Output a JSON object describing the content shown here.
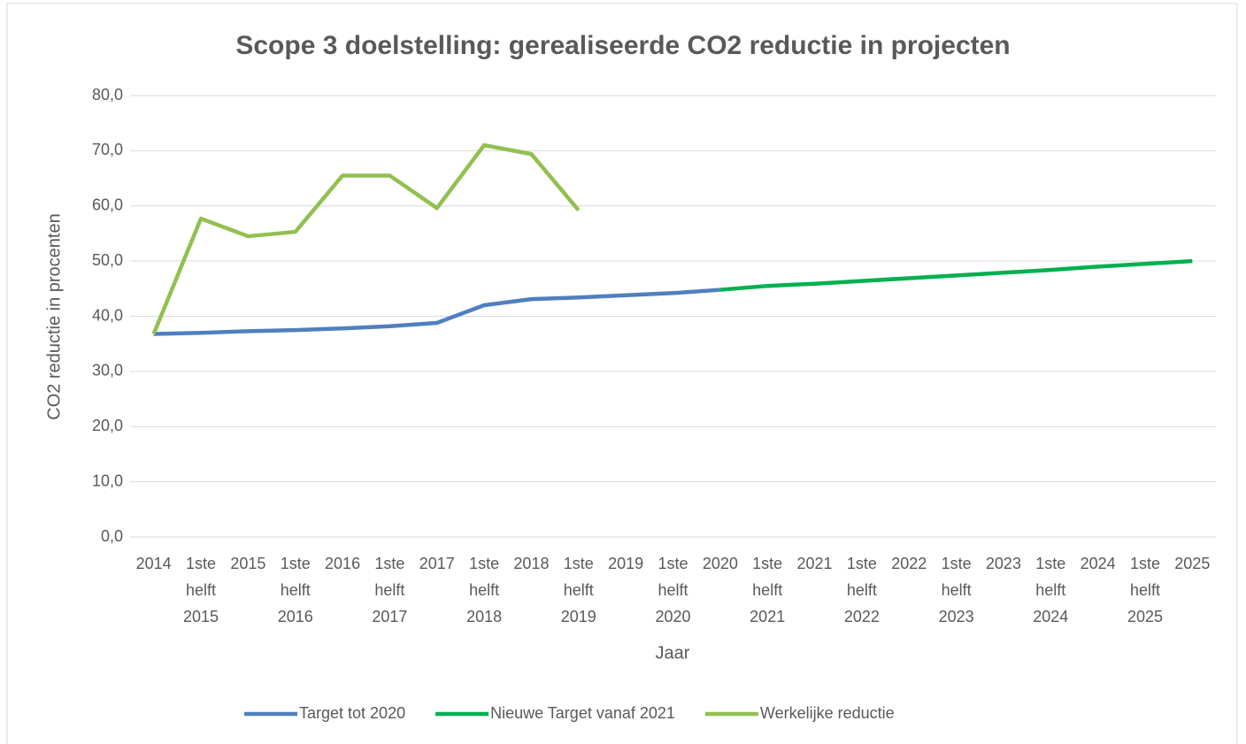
{
  "chart_data": {
    "type": "line",
    "title": "Scope 3 doelstelling: gerealiseerde CO2 reductie in projecten",
    "x_label": "Jaar",
    "y_label": "CO2 reductie in procenten",
    "categories": [
      "2014",
      "1ste helft 2015",
      "2015",
      "1ste helft 2016",
      "2016",
      "1ste helft 2017",
      "2017",
      "1ste helft 2018",
      "2018",
      "1ste helft 2019",
      "2019",
      "1ste helft 2020",
      "2020",
      "1ste helft 2021",
      "2021",
      "1ste helft 2022",
      "2022",
      "1ste helft 2023",
      "2023",
      "1ste helft 2024",
      "2024",
      "1ste helft 2025",
      "2025"
    ],
    "series": [
      {
        "name": "Target tot 2020",
        "color": "#4f7fbe",
        "values": [
          36.8,
          37.0,
          37.3,
          37.5,
          37.8,
          38.2,
          38.8,
          42.0,
          43.1,
          43.4,
          43.8,
          44.2,
          44.8,
          null,
          null,
          null,
          null,
          null,
          null,
          null,
          null,
          null,
          null
        ]
      },
      {
        "name": "Nieuwe Target vanaf 2021",
        "color": "#00b050",
        "values": [
          null,
          null,
          null,
          null,
          null,
          null,
          null,
          null,
          null,
          null,
          null,
          null,
          44.8,
          45.5,
          45.9,
          46.4,
          46.9,
          47.4,
          47.9,
          48.4,
          49.0,
          49.5,
          50.0
        ]
      },
      {
        "name": "Werkelijke reductie",
        "color": "#92c050",
        "values": [
          36.8,
          57.7,
          54.5,
          55.3,
          65.5,
          65.5,
          59.6,
          71.0,
          69.4,
          59.2,
          null,
          null,
          null,
          null,
          null,
          null,
          null,
          null,
          null,
          null,
          null,
          null,
          null
        ]
      }
    ],
    "ylim": [
      0,
      80
    ],
    "yticks": [
      {
        "value": 0,
        "label": "0,0"
      },
      {
        "value": 10,
        "label": "10,0"
      },
      {
        "value": 20,
        "label": "20,0"
      },
      {
        "value": 30,
        "label": "30,0"
      },
      {
        "value": 40,
        "label": "40,0"
      },
      {
        "value": 50,
        "label": "50,0"
      },
      {
        "value": 60,
        "label": "60,0"
      },
      {
        "value": 70,
        "label": "70,0"
      },
      {
        "value": 80,
        "label": "80,0"
      }
    ],
    "grid": true,
    "legend": "bottom"
  }
}
